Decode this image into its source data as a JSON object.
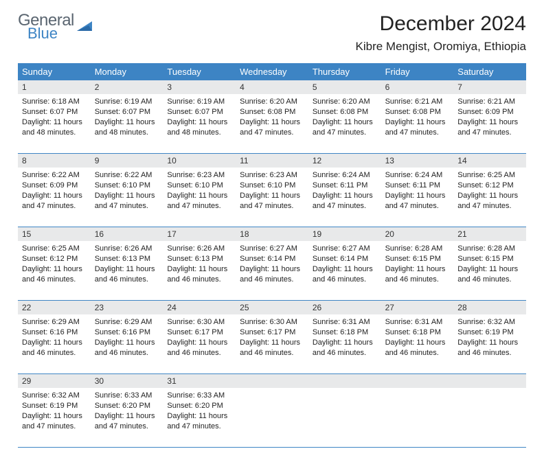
{
  "logo": {
    "word1": "General",
    "word2": "Blue",
    "color_gray": "#5a6570",
    "color_blue": "#3d84c4"
  },
  "title": "December 2024",
  "location": "Kibre Mengist, Oromiya, Ethiopia",
  "theme": {
    "header_bg": "#3d84c4",
    "row_divider": "#3d84c4",
    "daynum_bg": "#e8e9ea",
    "page_bg": "#ffffff",
    "text_color": "#222222",
    "title_fontsize": 30,
    "location_fontsize": 17,
    "dayheader_fontsize": 13,
    "daynum_fontsize": 12,
    "info_fontsize": 11
  },
  "day_headers": [
    "Sunday",
    "Monday",
    "Tuesday",
    "Wednesday",
    "Thursday",
    "Friday",
    "Saturday"
  ],
  "weeks": [
    [
      {
        "n": "1",
        "sunrise": "6:18 AM",
        "sunset": "6:07 PM",
        "daylight": "11 hours and 48 minutes."
      },
      {
        "n": "2",
        "sunrise": "6:19 AM",
        "sunset": "6:07 PM",
        "daylight": "11 hours and 48 minutes."
      },
      {
        "n": "3",
        "sunrise": "6:19 AM",
        "sunset": "6:07 PM",
        "daylight": "11 hours and 48 minutes."
      },
      {
        "n": "4",
        "sunrise": "6:20 AM",
        "sunset": "6:08 PM",
        "daylight": "11 hours and 47 minutes."
      },
      {
        "n": "5",
        "sunrise": "6:20 AM",
        "sunset": "6:08 PM",
        "daylight": "11 hours and 47 minutes."
      },
      {
        "n": "6",
        "sunrise": "6:21 AM",
        "sunset": "6:08 PM",
        "daylight": "11 hours and 47 minutes."
      },
      {
        "n": "7",
        "sunrise": "6:21 AM",
        "sunset": "6:09 PM",
        "daylight": "11 hours and 47 minutes."
      }
    ],
    [
      {
        "n": "8",
        "sunrise": "6:22 AM",
        "sunset": "6:09 PM",
        "daylight": "11 hours and 47 minutes."
      },
      {
        "n": "9",
        "sunrise": "6:22 AM",
        "sunset": "6:10 PM",
        "daylight": "11 hours and 47 minutes."
      },
      {
        "n": "10",
        "sunrise": "6:23 AM",
        "sunset": "6:10 PM",
        "daylight": "11 hours and 47 minutes."
      },
      {
        "n": "11",
        "sunrise": "6:23 AM",
        "sunset": "6:10 PM",
        "daylight": "11 hours and 47 minutes."
      },
      {
        "n": "12",
        "sunrise": "6:24 AM",
        "sunset": "6:11 PM",
        "daylight": "11 hours and 47 minutes."
      },
      {
        "n": "13",
        "sunrise": "6:24 AM",
        "sunset": "6:11 PM",
        "daylight": "11 hours and 47 minutes."
      },
      {
        "n": "14",
        "sunrise": "6:25 AM",
        "sunset": "6:12 PM",
        "daylight": "11 hours and 47 minutes."
      }
    ],
    [
      {
        "n": "15",
        "sunrise": "6:25 AM",
        "sunset": "6:12 PM",
        "daylight": "11 hours and 46 minutes."
      },
      {
        "n": "16",
        "sunrise": "6:26 AM",
        "sunset": "6:13 PM",
        "daylight": "11 hours and 46 minutes."
      },
      {
        "n": "17",
        "sunrise": "6:26 AM",
        "sunset": "6:13 PM",
        "daylight": "11 hours and 46 minutes."
      },
      {
        "n": "18",
        "sunrise": "6:27 AM",
        "sunset": "6:14 PM",
        "daylight": "11 hours and 46 minutes."
      },
      {
        "n": "19",
        "sunrise": "6:27 AM",
        "sunset": "6:14 PM",
        "daylight": "11 hours and 46 minutes."
      },
      {
        "n": "20",
        "sunrise": "6:28 AM",
        "sunset": "6:15 PM",
        "daylight": "11 hours and 46 minutes."
      },
      {
        "n": "21",
        "sunrise": "6:28 AM",
        "sunset": "6:15 PM",
        "daylight": "11 hours and 46 minutes."
      }
    ],
    [
      {
        "n": "22",
        "sunrise": "6:29 AM",
        "sunset": "6:16 PM",
        "daylight": "11 hours and 46 minutes."
      },
      {
        "n": "23",
        "sunrise": "6:29 AM",
        "sunset": "6:16 PM",
        "daylight": "11 hours and 46 minutes."
      },
      {
        "n": "24",
        "sunrise": "6:30 AM",
        "sunset": "6:17 PM",
        "daylight": "11 hours and 46 minutes."
      },
      {
        "n": "25",
        "sunrise": "6:30 AM",
        "sunset": "6:17 PM",
        "daylight": "11 hours and 46 minutes."
      },
      {
        "n": "26",
        "sunrise": "6:31 AM",
        "sunset": "6:18 PM",
        "daylight": "11 hours and 46 minutes."
      },
      {
        "n": "27",
        "sunrise": "6:31 AM",
        "sunset": "6:18 PM",
        "daylight": "11 hours and 46 minutes."
      },
      {
        "n": "28",
        "sunrise": "6:32 AM",
        "sunset": "6:19 PM",
        "daylight": "11 hours and 46 minutes."
      }
    ],
    [
      {
        "n": "29",
        "sunrise": "6:32 AM",
        "sunset": "6:19 PM",
        "daylight": "11 hours and 47 minutes."
      },
      {
        "n": "30",
        "sunrise": "6:33 AM",
        "sunset": "6:20 PM",
        "daylight": "11 hours and 47 minutes."
      },
      {
        "n": "31",
        "sunrise": "6:33 AM",
        "sunset": "6:20 PM",
        "daylight": "11 hours and 47 minutes."
      },
      null,
      null,
      null,
      null
    ]
  ],
  "labels": {
    "sunrise": "Sunrise:",
    "sunset": "Sunset:",
    "daylight": "Daylight:"
  }
}
